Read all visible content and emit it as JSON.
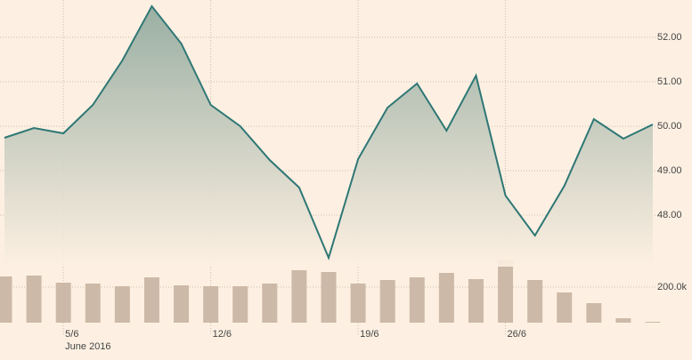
{
  "chart_data": [
    {
      "type": "line",
      "color": "#2e7775",
      "categories": [
        null,
        null,
        "5/6",
        null,
        null,
        null,
        null,
        "12/6",
        null,
        null,
        null,
        null,
        "19/6",
        null,
        null,
        null,
        null,
        "26/6",
        null,
        null,
        null,
        null,
        null
      ],
      "xlabel": "June 2016",
      "values": [
        49.74,
        49.96,
        49.84,
        50.48,
        51.48,
        52.7,
        51.86,
        50.48,
        50.0,
        49.24,
        48.62,
        47.04,
        49.26,
        50.42,
        50.96,
        49.9,
        51.14,
        48.44,
        47.54,
        48.66,
        50.16,
        49.72,
        50.04
      ],
      "ylim": [
        46.84,
        52.84
      ],
      "yticks": [
        {
          "value": 48,
          "label": "48.00"
        },
        {
          "value": 49,
          "label": "49.00"
        },
        {
          "value": 50,
          "label": "50.00"
        },
        {
          "value": 51,
          "label": "51.00"
        },
        {
          "value": 52,
          "label": "52.00"
        }
      ],
      "grid": true
    },
    {
      "type": "bar",
      "color": "#cdb9a7",
      "values": [
        260000,
        265000,
        225000,
        220000,
        205000,
        255000,
        210000,
        205000,
        205000,
        220000,
        295000,
        285000,
        220000,
        240000,
        255000,
        280000,
        245000,
        350000,
        240000,
        170000,
        110000,
        25000,
        5000
      ],
      "ylim": [
        0,
        365000
      ],
      "yticks": [
        {
          "value": 200000,
          "label": "200.0k"
        }
      ]
    }
  ]
}
